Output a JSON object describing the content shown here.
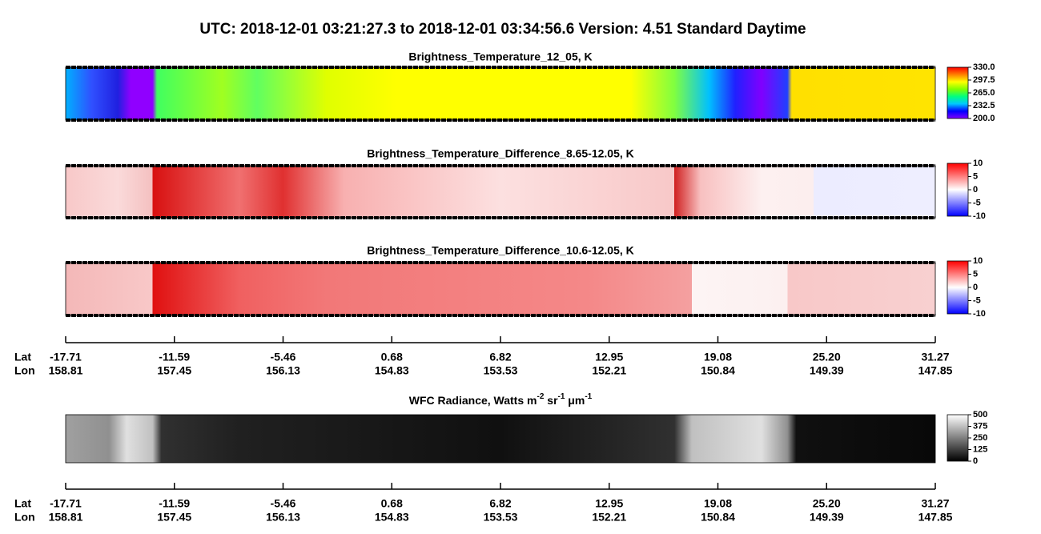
{
  "title": "UTC:  2018-12-01   03:21:27.3  to  2018-12-01   03:34:56.6    Version: 4.51  Standard Daytime",
  "chart_data": [
    {
      "type": "heatmap",
      "title": "Brightness_Temperature_12_05, K",
      "colorbar": {
        "lim": [
          200,
          330
        ],
        "ticks": [
          {
            "value": 200,
            "label": "200.0"
          },
          {
            "value": 232.5,
            "label": "232.5"
          },
          {
            "value": 265,
            "label": "265.0"
          },
          {
            "value": 297.5,
            "label": "297.5"
          },
          {
            "value": 330,
            "label": "330.0"
          }
        ],
        "colors": [
          "#8000ff",
          "#0000ff",
          "#00c8ff",
          "#00ff80",
          "#80ff00",
          "#ffff00",
          "#ff8000",
          "#ff0000"
        ]
      }
    },
    {
      "type": "heatmap",
      "title": "Brightness_Temperature_Difference_8.65-12.05, K",
      "colorbar": {
        "lim": [
          -10,
          10
        ],
        "ticks": [
          -10,
          -5,
          0,
          5,
          10
        ],
        "colors": [
          "#0000ff",
          "#ffffff",
          "#ff0000"
        ]
      }
    },
    {
      "type": "heatmap",
      "title": "Brightness_Temperature_Difference_10.6-12.05, K",
      "colorbar": {
        "lim": [
          -10,
          10
        ],
        "ticks": [
          -10,
          -5,
          0,
          5,
          10
        ],
        "colors": [
          "#0000ff",
          "#ffffff",
          "#ff0000"
        ]
      }
    },
    {
      "type": "heatmap",
      "title_parts": [
        "WFC Radiance, Watts m",
        "-2",
        " sr",
        "-1",
        " μm",
        "-1"
      ],
      "colorbar": {
        "lim": [
          0,
          500
        ],
        "ticks": [
          0,
          125,
          250,
          375,
          500
        ],
        "colors": [
          "#000000",
          "#ffffff"
        ]
      }
    }
  ],
  "x_axes": [
    {
      "lat_title": "Lat",
      "lon_title": "Lon",
      "lat": [
        "-17.71",
        "-11.59",
        "-5.46",
        "0.68",
        "6.82",
        "12.95",
        "19.08",
        "25.20",
        "31.27"
      ],
      "lon": [
        "158.81",
        "157.45",
        "156.13",
        "154.83",
        "153.53",
        "152.21",
        "150.84",
        "149.39",
        "147.85"
      ]
    },
    {
      "lat_title": "Lat",
      "lon_title": "Lon",
      "lat": [
        "-17.71",
        "-11.59",
        "-5.46",
        "0.68",
        "6.82",
        "12.95",
        "19.08",
        "25.20",
        "31.27"
      ],
      "lon": [
        "158.81",
        "157.45",
        "156.13",
        "154.83",
        "153.53",
        "152.21",
        "150.84",
        "149.39",
        "147.85"
      ]
    }
  ]
}
